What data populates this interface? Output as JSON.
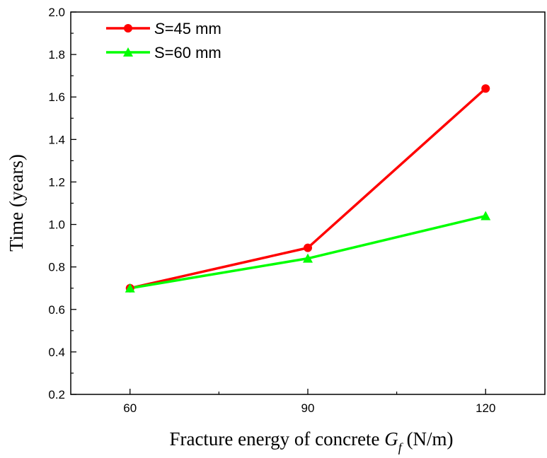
{
  "chart_data": {
    "type": "line",
    "x": [
      60,
      90,
      120
    ],
    "xticks": [
      "60",
      "90",
      "120"
    ],
    "xlim": [
      50,
      130
    ],
    "ylim": [
      0.2,
      2.0
    ],
    "yticks": [
      "0.2",
      "0.4",
      "0.6",
      "0.8",
      "1.0",
      "1.2",
      "1.4",
      "1.6",
      "1.8",
      "2.0"
    ],
    "xlabel": {
      "prefix": "Fracture energy of concrete ",
      "symbol": "G",
      "subscript": "f",
      "suffix": " (N/m)"
    },
    "ylabel": "Time (years)",
    "legend_position": "top-left",
    "grid": false,
    "series": [
      {
        "name_italic": "S",
        "name_rest": "=45 mm",
        "color": "#ff0000",
        "marker": "circle",
        "values": [
          0.7,
          0.89,
          1.64
        ]
      },
      {
        "name_italic": "",
        "name_rest": "S=60 mm",
        "color": "#00ff00",
        "marker": "triangle",
        "values": [
          0.7,
          0.84,
          1.04
        ]
      }
    ]
  }
}
